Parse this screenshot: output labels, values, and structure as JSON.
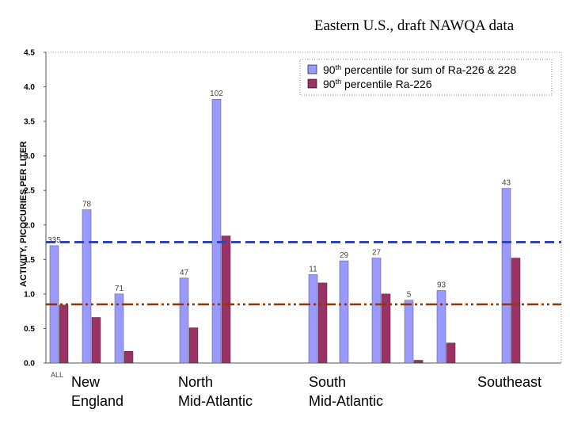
{
  "chart_data": {
    "type": "bar",
    "title": "Eastern U.S., draft NAWQA data",
    "ylabel": "ACTIVITY, PICOCURIES PER LITER",
    "ylim": [
      0,
      4.5
    ],
    "yticks": [
      "0.0",
      "0.5",
      "1.0",
      "1.5",
      "2.0",
      "2.5",
      "3.0",
      "3.5",
      "4.0",
      "4.5"
    ],
    "grid": false,
    "legend_position": "top-right",
    "colors": {
      "sum": "#9999ff",
      "ra226": "#993366",
      "line_sum": "#3344bb",
      "line_ra226": "#993300"
    },
    "series": [
      {
        "name": "90th percentile for sum of Ra-226 & 228",
        "legend_main": "90",
        "legend_sup": "th",
        "legend_rest": " percentile for sum of Ra-226 & 228"
      },
      {
        "name": "90th percentile Ra-226",
        "legend_main": "90",
        "legend_sup": "th",
        "legend_rest": " percentile Ra-226"
      }
    ],
    "bars": [
      {
        "count": "335",
        "sum": 1.7,
        "ra226": 0.84
      },
      {
        "count": "78",
        "sum": 2.22,
        "ra226": 0.66
      },
      {
        "count": "71",
        "sum": 1.0,
        "ra226": 0.17
      },
      {
        "count": "47",
        "sum": 1.23,
        "ra226": 0.51
      },
      {
        "count": "102",
        "sum": 3.82,
        "ra226": 1.84
      },
      {
        "count": "11",
        "sum": 1.28,
        "ra226": 1.16
      },
      {
        "count": "29",
        "sum": 1.48,
        "ra226": 0.0
      },
      {
        "count": "27",
        "sum": 1.52,
        "ra226": 1.0
      },
      {
        "count": "5",
        "sum": 0.91,
        "ra226": 0.04
      },
      {
        "count": "93",
        "sum": 1.05,
        "ra226": 0.29
      },
      {
        "count": "43",
        "sum": 2.53,
        "ra226": 1.52
      }
    ],
    "reference_lines": [
      {
        "series": "sum",
        "value": 1.75,
        "style": "dashed"
      },
      {
        "series": "ra226",
        "value": 0.85,
        "style": "dash-dot"
      }
    ],
    "first_label": "ALL",
    "groups": [
      {
        "line1": "New",
        "line2": "England"
      },
      {
        "line1": "North",
        "line2": "Mid-Atlantic"
      },
      {
        "line1": "South",
        "line2": "Mid-Atlantic"
      },
      {
        "line1": "Southeast",
        "line2": ""
      }
    ]
  }
}
